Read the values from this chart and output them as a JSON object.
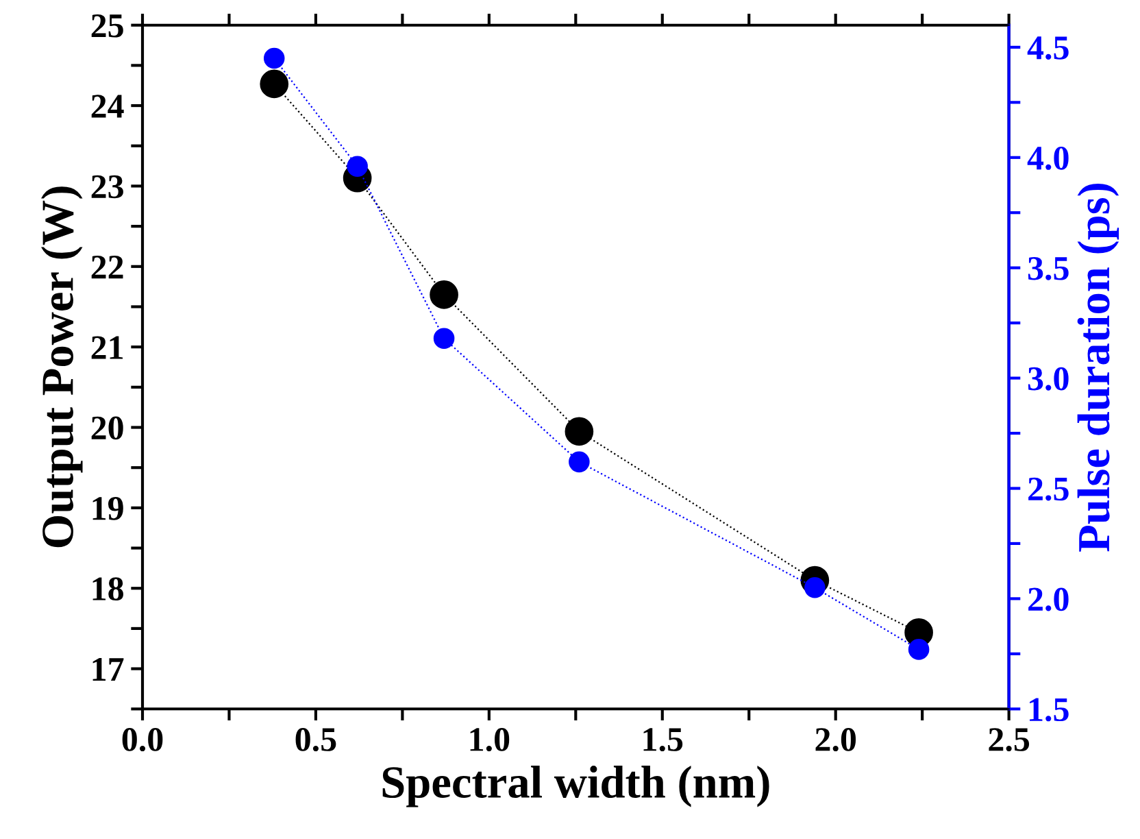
{
  "chart_data": {
    "type": "line",
    "xlabel": "Spectral width (nm)",
    "ylabel": "Output Power (W)",
    "y2label": "Pulse duration (ps)",
    "x": [
      0.38,
      0.62,
      0.87,
      1.26,
      1.94,
      2.24
    ],
    "series": [
      {
        "color": "#000000",
        "values": [
          24.27,
          23.1,
          21.65,
          19.95,
          18.1,
          17.45
        ]
      },
      {
        "color": "#0000ff",
        "axis": "y2",
        "values": [
          4.45,
          3.96,
          3.18,
          2.62,
          2.05,
          1.77
        ]
      }
    ],
    "xlim": [
      0,
      2.5
    ],
    "xticks": [
      {
        "value": 0,
        "label": "0.0"
      },
      {
        "value": 0.25,
        "label": null
      },
      {
        "value": 0.5,
        "label": "0.5"
      },
      {
        "value": 0.75,
        "label": null
      },
      {
        "value": 1,
        "label": "1.0"
      },
      {
        "value": 1.25,
        "label": null
      },
      {
        "value": 1.5,
        "label": "1.5"
      },
      {
        "value": 1.75,
        "label": null
      },
      {
        "value": 2,
        "label": "2.0"
      },
      {
        "value": 2.25,
        "label": null
      },
      {
        "value": 2.5,
        "label": "2.5"
      }
    ],
    "ylim": [
      16.5,
      25
    ],
    "yticks": [
      {
        "value": 16.5,
        "label": null
      },
      17,
      {
        "value": 17.5,
        "label": null
      },
      18,
      {
        "value": 18.5,
        "label": null
      },
      19,
      {
        "value": 19.5,
        "label": null
      },
      20,
      {
        "value": 20.5,
        "label": null
      },
      21,
      {
        "value": 21.5,
        "label": null
      },
      22,
      {
        "value": 22.5,
        "label": null
      },
      23,
      {
        "value": 23.5,
        "label": null
      },
      24,
      {
        "value": 24.5,
        "label": null
      },
      25
    ],
    "y2lim": [
      1.5,
      4.6
    ],
    "y2ticks": [
      1.5,
      {
        "value": 1.75,
        "label": null
      },
      {
        "value": 2,
        "label": "2.0"
      },
      {
        "value": 2.25,
        "label": null
      },
      2.5,
      {
        "value": 2.75,
        "label": null
      },
      {
        "value": 3,
        "label": "3.0"
      },
      {
        "value": 3.25,
        "label": null
      },
      3.5,
      {
        "value": 3.75,
        "label": null
      },
      {
        "value": 4,
        "label": "4.0"
      },
      {
        "value": 4.25,
        "label": null
      },
      4.5
    ],
    "marker": "circle",
    "line_style": "dotted",
    "grid": false,
    "legend": false
  }
}
